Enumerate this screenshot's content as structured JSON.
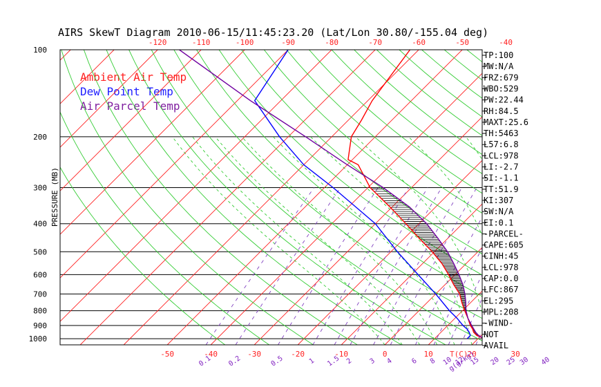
{
  "chart_data": {
    "type": "line",
    "title": "AIRS SkewT Diagram 2010-06-15/11:45:23.20 (Lat/Lon 30.80/-155.04 deg)",
    "ylabel": "PRESSURE (MB)",
    "pressure_levels": [
      100,
      200,
      300,
      400,
      500,
      600,
      700,
      800,
      900,
      1000
    ],
    "top_temp_ticks": [
      "-120",
      "-110",
      "-100",
      "-90",
      "-80",
      "-70",
      "-60",
      "-50",
      "-40"
    ],
    "bottom_temp_ticks": [
      "-50",
      "-40",
      "-30",
      "-20",
      "-10",
      "0",
      "10",
      "20",
      "30"
    ],
    "bottom_axis_unit": "T(C)",
    "mixing_ratio_labels": [
      "0.1",
      "0.2",
      "0.5",
      "1",
      "1.5",
      "2",
      "3",
      "4",
      "6",
      "8",
      "10",
      "12",
      "15",
      "20",
      "25",
      "30",
      "40",
      "g(g/kg)"
    ],
    "legend": [
      {
        "label": "Ambient Air Temp",
        "color": "#ff2020"
      },
      {
        "label": "Dew Point Temp",
        "color": "#2020ff"
      },
      {
        "label": "Air Parcel Temp",
        "color": "#8020a0"
      }
    ],
    "series": [
      {
        "name": "Ambient Air Temp",
        "color": "#ff0000",
        "points": [
          [
            1000,
            21.5
          ],
          [
            975,
            19
          ],
          [
            950,
            17.5
          ],
          [
            925,
            16.5
          ],
          [
            900,
            15.2
          ],
          [
            850,
            13
          ],
          [
            800,
            10.5
          ],
          [
            750,
            8
          ],
          [
            700,
            5.5
          ],
          [
            650,
            2
          ],
          [
            600,
            -1.5
          ],
          [
            550,
            -5.5
          ],
          [
            500,
            -10.5
          ],
          [
            450,
            -16.5
          ],
          [
            400,
            -23
          ],
          [
            350,
            -30.5
          ],
          [
            300,
            -39.5
          ],
          [
            250,
            -47.5
          ],
          [
            240,
            -51
          ],
          [
            200,
            -55.5
          ],
          [
            175,
            -57
          ],
          [
            150,
            -59
          ],
          [
            100,
            -62
          ]
        ]
      },
      {
        "name": "Dew Point Temp",
        "color": "#0000ff",
        "points": [
          [
            1000,
            17.5
          ],
          [
            975,
            17.5
          ],
          [
            950,
            16.5
          ],
          [
            925,
            15.2
          ],
          [
            900,
            13.5
          ],
          [
            850,
            10.5
          ],
          [
            800,
            7
          ],
          [
            700,
            0
          ],
          [
            600,
            -8.5
          ],
          [
            500,
            -18.5
          ],
          [
            400,
            -30
          ],
          [
            300,
            -48
          ],
          [
            250,
            -60
          ],
          [
            200,
            -72
          ],
          [
            150,
            -86
          ],
          [
            100,
            -90
          ]
        ]
      },
      {
        "name": "Air Parcel Temp",
        "color": "#7000a0",
        "points": [
          [
            1000,
            21.5
          ],
          [
            978,
            19.6
          ],
          [
            950,
            18
          ],
          [
            900,
            15.5
          ],
          [
            850,
            13
          ],
          [
            800,
            10.8
          ],
          [
            750,
            8.9
          ],
          [
            700,
            6.7
          ],
          [
            650,
            4.1
          ],
          [
            600,
            0.9
          ],
          [
            550,
            -2.8
          ],
          [
            500,
            -7
          ],
          [
            450,
            -12.2
          ],
          [
            400,
            -18.2
          ],
          [
            350,
            -26
          ],
          [
            300,
            -36.5
          ],
          [
            250,
            -50
          ],
          [
            200,
            -66
          ],
          [
            150,
            -87
          ],
          [
            100,
            -115
          ]
        ]
      }
    ],
    "indices": [
      "TP:100",
      "MW:N/A",
      "FRZ:679",
      "WBO:529",
      "PW:22.44",
      "RH:84.5",
      "MAXT:25.6",
      "TH:5463",
      "L57:6.8",
      "LCL:978",
      "LI:-2.7",
      "SI:-1.1",
      "TT:51.9",
      "KI:307",
      "SW:N/A",
      "EI:0.1",
      "-PARCEL-",
      "CAPE:605",
      "CINH:45",
      "LCL:978",
      "CAP:0.0",
      "LFC:867",
      "EL:295",
      "MPL:208",
      "-WIND-",
      "NOT",
      "AVAIL"
    ]
  }
}
